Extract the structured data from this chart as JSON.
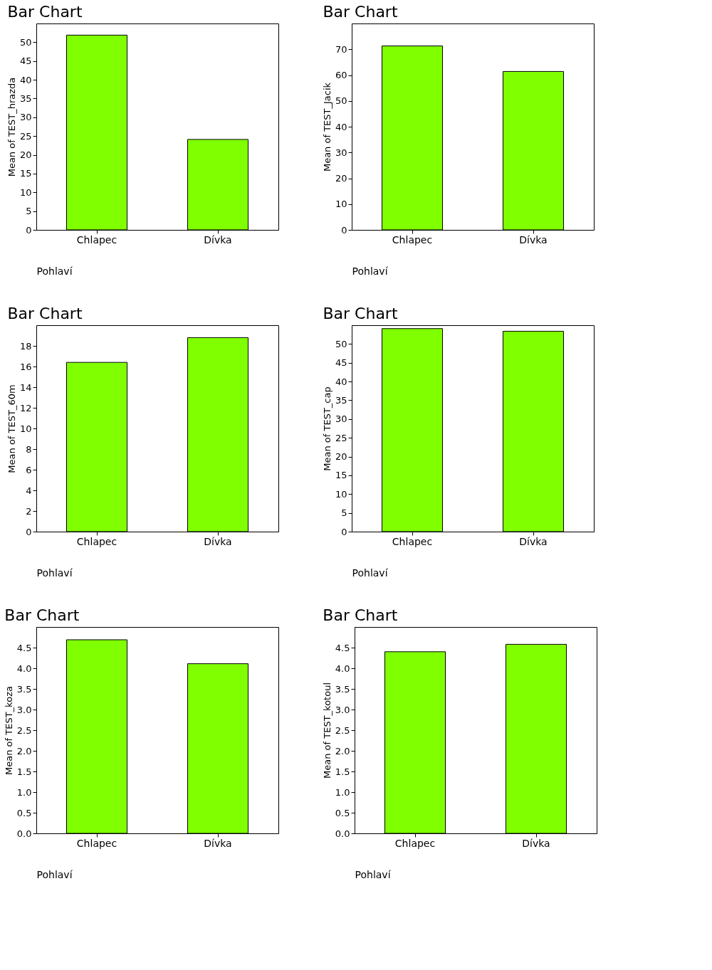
{
  "chart_data": [
    {
      "type": "bar",
      "title": "Bar Chart",
      "xlabel": "Pohlaví",
      "ylabel": "Mean of TEST_hrazda",
      "categories": [
        "Chlapec",
        "Dívka"
      ],
      "values": [
        51.9,
        24.1
      ],
      "color": "#80ff00",
      "ylim": [
        0,
        55
      ],
      "yticks": [
        0,
        5,
        10,
        15,
        20,
        25,
        30,
        35,
        40,
        45,
        50
      ],
      "grid": false
    },
    {
      "type": "bar",
      "title": "Bar Chart",
      "xlabel": "Pohlaví",
      "ylabel": "Mean of TEST_Jacik",
      "categories": [
        "Chlapec",
        "Dívka"
      ],
      "values": [
        71.3,
        61.4
      ],
      "color": "#80ff00",
      "ylim": [
        0,
        80
      ],
      "yticks": [
        0,
        10,
        20,
        30,
        40,
        50,
        60,
        70
      ],
      "grid": false
    },
    {
      "type": "bar",
      "title": "Bar Chart",
      "xlabel": "Pohlaví",
      "ylabel": "Mean of TEST_60m",
      "categories": [
        "Chlapec",
        "Dívka"
      ],
      "values": [
        16.4,
        18.8
      ],
      "color": "#80ff00",
      "ylim": [
        0,
        20
      ],
      "yticks": [
        0,
        2,
        4,
        6,
        8,
        10,
        12,
        14,
        16,
        18
      ],
      "grid": false
    },
    {
      "type": "bar",
      "title": "Bar Chart",
      "xlabel": "Pohlaví",
      "ylabel": "Mean of TEST_cap",
      "categories": [
        "Chlapec",
        "Dívka"
      ],
      "values": [
        54.1,
        53.4
      ],
      "color": "#80ff00",
      "ylim": [
        0,
        55
      ],
      "yticks": [
        0,
        5,
        10,
        15,
        20,
        25,
        30,
        35,
        40,
        45,
        50
      ],
      "grid": false
    },
    {
      "type": "bar",
      "title": "Bar Chart",
      "xlabel": "Pohlaví",
      "ylabel": "Mean of TEST_koza",
      "categories": [
        "Chlapec",
        "Dívka"
      ],
      "values": [
        4.69,
        4.11
      ],
      "color": "#80ff00",
      "ylim": [
        0,
        5
      ],
      "yticks": [
        {
          "value": 0,
          "label": "0.0"
        },
        0.5,
        {
          "value": 1,
          "label": "1.0"
        },
        1.5,
        {
          "value": 2,
          "label": "2.0"
        },
        2.5,
        {
          "value": 3,
          "label": "3.0"
        },
        3.5,
        {
          "value": 4,
          "label": "4.0"
        },
        4.5
      ],
      "grid": false
    },
    {
      "type": "bar",
      "title": "Bar Chart",
      "xlabel": "Pohlaví",
      "ylabel": "Mean of TEST_kotoul",
      "categories": [
        "Chlapec",
        "Dívka"
      ],
      "values": [
        4.4,
        4.58
      ],
      "color": "#80ff00",
      "ylim": [
        0,
        5
      ],
      "yticks": [
        {
          "value": 0,
          "label": "0.0"
        },
        0.5,
        {
          "value": 1,
          "label": "1.0"
        },
        1.5,
        {
          "value": 2,
          "label": "2.0"
        },
        2.5,
        {
          "value": 3,
          "label": "3.0"
        },
        3.5,
        {
          "value": 4,
          "label": "4.0"
        },
        4.5
      ],
      "grid": false
    }
  ]
}
